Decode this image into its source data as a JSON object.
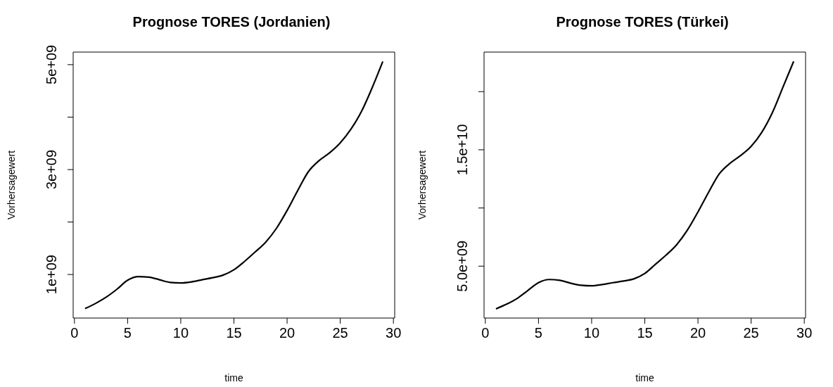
{
  "chart_data": [
    {
      "type": "line",
      "title": "Prognose TORES (Jordanien)",
      "xlabel": "time",
      "ylabel": "Vorhersagewert",
      "x": [
        1,
        2,
        3,
        4,
        5,
        6,
        7,
        8,
        9,
        10,
        11,
        12,
        13,
        14,
        15,
        16,
        17,
        18,
        19,
        20,
        21,
        22,
        23,
        24,
        25,
        26,
        27,
        28,
        29
      ],
      "series": [
        {
          "color": "#000000",
          "values": [
            350000000.0,
            450000000.0,
            570000000.0,
            720000000.0,
            890000000.0,
            960000000.0,
            950000000.0,
            900000000.0,
            850000000.0,
            840000000.0,
            860000000.0,
            900000000.0,
            940000000.0,
            990000000.0,
            1090000000.0,
            1250000000.0,
            1430000000.0,
            1620000000.0,
            1880000000.0,
            2220000000.0,
            2600000000.0,
            2960000000.0,
            3170000000.0,
            3320000000.0,
            3510000000.0,
            3770000000.0,
            4110000000.0,
            4560000000.0,
            5060000000.0
          ]
        }
      ],
      "xlim": [
        -0.12,
        30.12
      ],
      "xticks": [
        0,
        5,
        10,
        15,
        20,
        25,
        30
      ],
      "ylim": [
        170000000.0,
        5240000000.0
      ],
      "yticks": [
        {
          "value": 1000000000.0,
          "label": "1e+09"
        },
        {
          "value": 2000000000.0,
          "label": null
        },
        {
          "value": 3000000000.0,
          "label": "3e+09"
        },
        {
          "value": 4000000000.0,
          "label": null
        },
        {
          "value": 5000000000.0,
          "label": "5e+09"
        }
      ],
      "grid": false,
      "legend": false,
      "marker": "none",
      "line_style": "solid"
    },
    {
      "type": "line",
      "title": "Prognose TORES (Türkei)",
      "xlabel": "time",
      "ylabel": "Vorhersagewert",
      "x": [
        1,
        2,
        3,
        4,
        5,
        6,
        7,
        8,
        9,
        10,
        11,
        12,
        13,
        14,
        15,
        16,
        17,
        18,
        19,
        20,
        21,
        22,
        23,
        24,
        25,
        26,
        27,
        28,
        29
      ],
      "series": [
        {
          "color": "#000000",
          "values": [
            1330000000.0,
            1730000000.0,
            2230000000.0,
            2910000000.0,
            3580000000.0,
            3850000000.0,
            3780000000.0,
            3540000000.0,
            3360000000.0,
            3310000000.0,
            3420000000.0,
            3580000000.0,
            3720000000.0,
            3920000000.0,
            4370000000.0,
            5160000000.0,
            5950000000.0,
            6850000000.0,
            8090000000.0,
            9660000000.0,
            11350000000.0,
            12930000000.0,
            13830000000.0,
            14500000000.0,
            15300000000.0,
            16500000000.0,
            18200000000.0,
            20400000000.0,
            22600000000.0
          ]
        }
      ],
      "xlim": [
        -0.12,
        30.12
      ],
      "xticks": [
        0,
        5,
        10,
        15,
        20,
        25,
        30
      ],
      "ylim": [
        540000000.0,
        23400000000.0
      ],
      "yticks": [
        {
          "value": 5000000000.0,
          "label": "5.0e+09"
        },
        {
          "value": 10000000000.0,
          "label": null
        },
        {
          "value": 15000000000.0,
          "label": "1.5e+10"
        },
        {
          "value": 20000000000.0,
          "label": null
        }
      ],
      "grid": false,
      "legend": false,
      "marker": "none",
      "line_style": "solid"
    }
  ]
}
